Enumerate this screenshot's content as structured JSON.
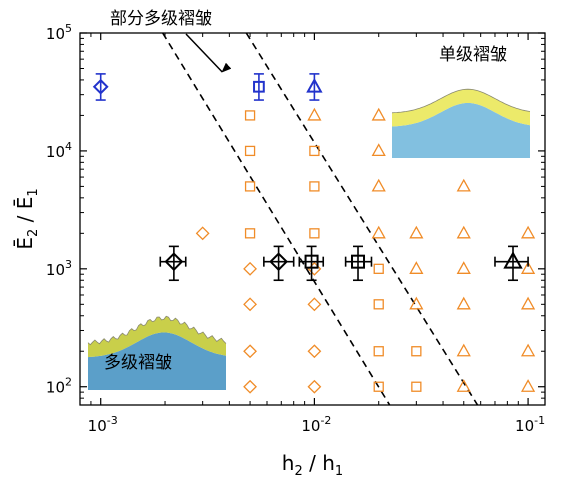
{
  "chart_data": {
    "type": "scatter",
    "title": "",
    "xlabel": {
      "base": "h",
      "sub": "2",
      "sep": " / ",
      "base2": "h",
      "sub2": "1"
    },
    "ylabel": {
      "base": "Ē",
      "sub": "2",
      "sep": " / ",
      "base2": "Ē",
      "sub2": "1"
    },
    "xscale": "log",
    "yscale": "log",
    "xlim": [
      0.0008,
      0.12
    ],
    "ylim": [
      70,
      100000
    ],
    "xticks": [
      {
        "value": 0.001,
        "base": "10",
        "exp": "-3"
      },
      {
        "value": 0.01,
        "base": "10",
        "exp": "-2"
      },
      {
        "value": 0.1,
        "base": "10",
        "exp": "-1"
      }
    ],
    "yticks": [
      {
        "value": 100,
        "base": "10",
        "exp": "2"
      },
      {
        "value": 1000,
        "base": "10",
        "exp": "3"
      },
      {
        "value": 10000,
        "base": "10",
        "exp": "4"
      },
      {
        "value": 100000,
        "base": "10",
        "exp": "5"
      }
    ],
    "grid": false,
    "colors": {
      "orange": "#f08c28",
      "blue": "#2233cc",
      "black": "#000000"
    },
    "series": [
      {
        "marker": "diamond",
        "color": "#f08c28",
        "points": [
          {
            "x": 0.003,
            "y": 2000
          },
          {
            "x": 0.005,
            "y": 1000
          },
          {
            "x": 0.005,
            "y": 500
          },
          {
            "x": 0.005,
            "y": 200
          },
          {
            "x": 0.005,
            "y": 100
          },
          {
            "x": 0.01,
            "y": 1000
          },
          {
            "x": 0.01,
            "y": 500
          },
          {
            "x": 0.01,
            "y": 200
          },
          {
            "x": 0.01,
            "y": 100
          }
        ]
      },
      {
        "marker": "square",
        "color": "#f08c28",
        "points": [
          {
            "x": 0.005,
            "y": 20000
          },
          {
            "x": 0.005,
            "y": 10000
          },
          {
            "x": 0.005,
            "y": 5000
          },
          {
            "x": 0.005,
            "y": 2000
          },
          {
            "x": 0.01,
            "y": 10000
          },
          {
            "x": 0.01,
            "y": 5000
          },
          {
            "x": 0.01,
            "y": 2000
          },
          {
            "x": 0.02,
            "y": 1000
          },
          {
            "x": 0.02,
            "y": 500
          },
          {
            "x": 0.02,
            "y": 200
          },
          {
            "x": 0.02,
            "y": 100
          },
          {
            "x": 0.03,
            "y": 200
          },
          {
            "x": 0.03,
            "y": 100
          }
        ]
      },
      {
        "marker": "triangle",
        "color": "#f08c28",
        "points": [
          {
            "x": 0.01,
            "y": 20000
          },
          {
            "x": 0.02,
            "y": 20000
          },
          {
            "x": 0.02,
            "y": 10000
          },
          {
            "x": 0.02,
            "y": 5000
          },
          {
            "x": 0.02,
            "y": 2000
          },
          {
            "x": 0.03,
            "y": 2000
          },
          {
            "x": 0.03,
            "y": 1000
          },
          {
            "x": 0.03,
            "y": 500
          },
          {
            "x": 0.05,
            "y": 5000
          },
          {
            "x": 0.05,
            "y": 2000
          },
          {
            "x": 0.05,
            "y": 1000
          },
          {
            "x": 0.05,
            "y": 500
          },
          {
            "x": 0.05,
            "y": 200
          },
          {
            "x": 0.05,
            "y": 100
          },
          {
            "x": 0.1,
            "y": 2000
          },
          {
            "x": 0.1,
            "y": 1000
          },
          {
            "x": 0.1,
            "y": 500
          },
          {
            "x": 0.1,
            "y": 200
          },
          {
            "x": 0.1,
            "y": 100
          }
        ]
      },
      {
        "marker": "diamond",
        "color": "#2233cc",
        "errorbars": true,
        "points": [
          {
            "x": 0.001,
            "y": 35000,
            "yerr": [
              27000,
              45000
            ]
          }
        ]
      },
      {
        "marker": "square",
        "color": "#2233cc",
        "errorbars": true,
        "points": [
          {
            "x": 0.0055,
            "y": 35000,
            "yerr": [
              27000,
              45000
            ]
          }
        ]
      },
      {
        "marker": "triangle",
        "color": "#2233cc",
        "errorbars": true,
        "points": [
          {
            "x": 0.01,
            "y": 35000,
            "yerr": [
              27000,
              45000
            ]
          }
        ]
      },
      {
        "marker": "diamond",
        "color": "#000000",
        "errorbars": true,
        "points": [
          {
            "x": 0.0022,
            "y": 1150,
            "xerr": [
              0.0019,
              0.0025
            ],
            "yerr": [
              800,
              1550
            ]
          },
          {
            "x": 0.0068,
            "y": 1150,
            "xerr": [
              0.0058,
              0.008
            ],
            "yerr": [
              800,
              1550
            ]
          }
        ]
      },
      {
        "marker": "square",
        "color": "#000000",
        "errorbars": true,
        "points": [
          {
            "x": 0.0097,
            "y": 1150,
            "xerr": [
              0.0085,
              0.011
            ],
            "yerr": [
              800,
              1550
            ]
          },
          {
            "x": 0.016,
            "y": 1150,
            "xerr": [
              0.014,
              0.0185
            ],
            "yerr": [
              800,
              1550
            ]
          }
        ]
      },
      {
        "marker": "triangle",
        "color": "#000000",
        "errorbars": true,
        "points": [
          {
            "x": 0.085,
            "y": 1150,
            "xerr": [
              0.07,
              0.1
            ],
            "yerr": [
              800,
              1550
            ]
          }
        ]
      }
    ],
    "boundary_lines": [
      {
        "style": "dashed",
        "from": {
          "x": 0.00195,
          "y": 100000
        },
        "to": {
          "x": 0.0225,
          "y": 70
        }
      },
      {
        "style": "dashed",
        "from": {
          "x": 0.0048,
          "y": 100000
        },
        "to": {
          "x": 0.058,
          "y": 70
        }
      }
    ],
    "annotations": [
      {
        "text": "部分多级褶皱",
        "arrow": true,
        "arrow_to": {
          "x": 0.0037,
          "y": 45000
        }
      }
    ],
    "insets": [
      {
        "label": "单级褶皱",
        "kind": "single",
        "corner": "top-right"
      },
      {
        "label": "多级褶皱",
        "kind": "multi",
        "corner": "bottom-left"
      }
    ]
  }
}
